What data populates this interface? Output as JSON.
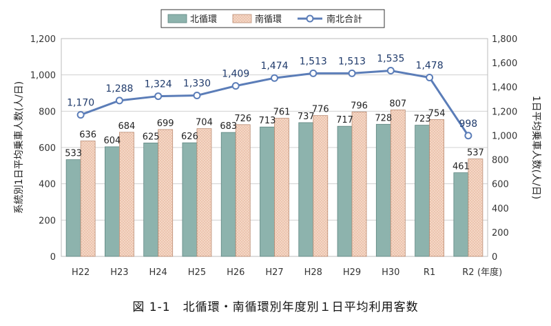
{
  "chart_data": {
    "type": "bar",
    "categories": [
      "H22",
      "H23",
      "H24",
      "H25",
      "H26",
      "H27",
      "H28",
      "H29",
      "H30",
      "R1",
      "R2"
    ],
    "x_unit_label": "(年度)",
    "series": [
      {
        "name": "北循環",
        "type": "bar",
        "axis": "left",
        "color": "#8db3ad",
        "values": [
          533,
          604,
          625,
          626,
          683,
          713,
          737,
          717,
          728,
          723,
          461
        ]
      },
      {
        "name": "南循環",
        "type": "bar",
        "axis": "left",
        "color": "#f4d7c6",
        "values": [
          636,
          684,
          699,
          704,
          726,
          761,
          776,
          796,
          807,
          754,
          537
        ]
      },
      {
        "name": "南北合計",
        "type": "line",
        "axis": "right",
        "color": "#5b7db8",
        "values": [
          1170,
          1288,
          1324,
          1330,
          1409,
          1474,
          1513,
          1513,
          1535,
          1478,
          998
        ]
      }
    ],
    "ylabel_left": "系統別1日平均乗車人数(人/日)",
    "ylabel_right": "1日平均乗車人数(人/日)",
    "ylim_left": [
      0,
      1200
    ],
    "ylim_right": [
      0,
      1800
    ],
    "yticks_left": [
      "0",
      "200",
      "400",
      "600",
      "800",
      "1,000",
      "1,200"
    ],
    "yticks_right": [
      "0",
      "200",
      "400",
      "600",
      "800",
      "1,000",
      "1,200",
      "1,400",
      "1,600",
      "1,800"
    ],
    "grid": true,
    "legend_position": "top",
    "caption": "図 1-1　北循環・南循環別年度別１日平均利用客数"
  }
}
